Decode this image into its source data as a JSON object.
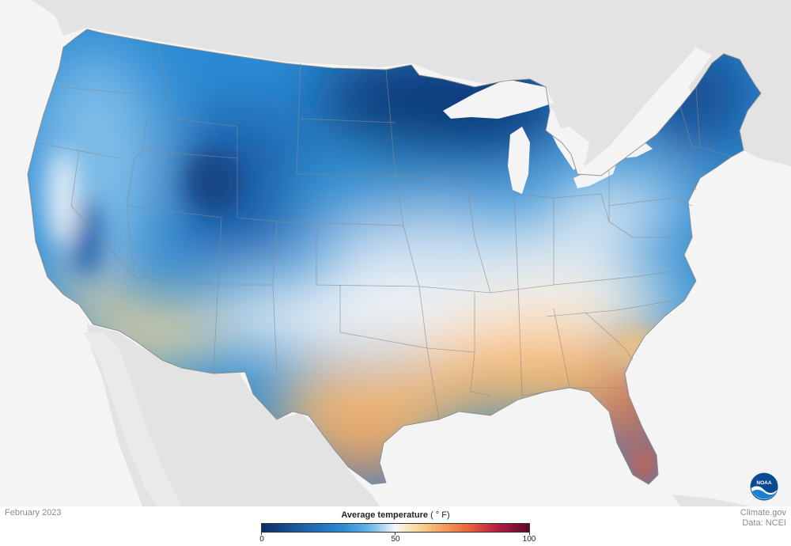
{
  "map": {
    "date": "February 2023",
    "credit_line1": "Climate.gov",
    "credit_line2": "Data: NCEI",
    "logo_text": "NOAA",
    "legend": {
      "title": "Average temperature",
      "unit": "( ° F)",
      "ticks": [
        "0",
        "50",
        "100"
      ],
      "range": [
        0,
        100
      ],
      "colors": [
        "#0b2e63",
        "#1e5da8",
        "#2b8ad3",
        "#64b4e6",
        "#f6f7f8",
        "#f7dfa6",
        "#f4a460",
        "#e8603c",
        "#b51d42",
        "#5a0a2c"
      ]
    },
    "background_colors": {
      "ocean": "#f4f4f4",
      "neighbor_land": "#e3e3e3",
      "great_lakes": "#f4f4f4",
      "state_border": "#8a8a8a"
    }
  }
}
